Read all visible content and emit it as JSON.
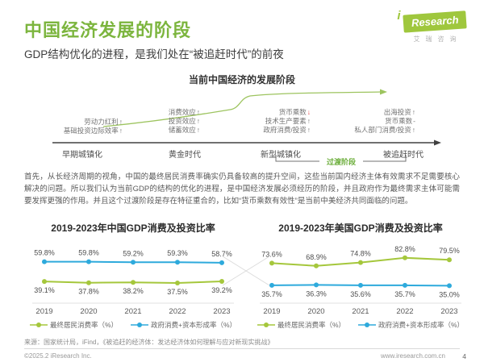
{
  "header": {
    "title": "中国经济发展的阶段",
    "subtitle": "GDP结构优化的进程，是我们处在“被追赶时代”的前夜",
    "logo": {
      "prefix": "i",
      "name": "Research",
      "cn": "艾瑞咨询"
    }
  },
  "diagram": {
    "title": "当前中国经济的发展阶段",
    "transition_label": "过渡阶段",
    "groups": [
      {
        "stage": "早期城镇化",
        "factors": [
          {
            "text": "劳动力红利",
            "arrow": "up"
          },
          {
            "text": "基础投资边际效率",
            "arrow": "up"
          }
        ]
      },
      {
        "stage": "黄金时代",
        "factors": [
          {
            "text": "消费效应",
            "arrow": "up"
          },
          {
            "text": "投资效应",
            "arrow": "up"
          },
          {
            "text": "储蓄效应",
            "arrow": "up"
          }
        ]
      },
      {
        "stage": "新型城镇化",
        "factors": [
          {
            "text": "货币乘数",
            "arrow": "down",
            "arrow_color": "#e4393c"
          },
          {
            "text": "技术生产要素",
            "arrow": "up"
          },
          {
            "text": "政府消费/投资",
            "arrow": "up"
          }
        ]
      },
      {
        "stage": "被追赶时代",
        "factors": [
          {
            "text": "出海投资",
            "arrow": "up"
          },
          {
            "text": "货币乘数",
            "arrow": "dash"
          },
          {
            "text": "私人部门消费/投资",
            "arrow": "up"
          }
        ]
      }
    ]
  },
  "body_text": "首先，从长经济周期的视角，中国的最终居民消费率确实仍具备较高的提升空间，这些当前国内经济主体有效需求不足需要核心解决的问题。所以我们认为当前GDP的结构的优化的进程，是中国经济发展必须经历的阶段，并且政府作为最终需求主体可能需要发挥更强的作用。并且这个过渡阶段是存在特征重合的，比如“货币乘数有效性”是当前中美经济共同面临的问题。",
  "chart_data": [
    {
      "type": "line",
      "title": "2019-2023年中国GDP消费及投资比率",
      "categories": [
        "2019",
        "2020",
        "2021",
        "2022",
        "2023"
      ],
      "series": [
        {
          "name": "最终居民消费率（%）",
          "color": "#a5c73c",
          "values": [
            39.1,
            37.8,
            38.2,
            37.5,
            39.2
          ],
          "label_position": "below"
        },
        {
          "name": "政府消费+资本形成率（%）",
          "color": "#2eaadc",
          "values": [
            59.8,
            59.8,
            59.2,
            59.3,
            58.7
          ],
          "label_position": "above"
        }
      ],
      "ylim": [
        35,
        62
      ],
      "grid": false,
      "legend_position": "bottom"
    },
    {
      "type": "line",
      "title": "2019-2023年美国GDP消费及投资比率",
      "categories": [
        "2019",
        "2020",
        "2021",
        "2022",
        "2023"
      ],
      "series": [
        {
          "name": "最终居民消费率（%）",
          "color": "#a5c73c",
          "values": [
            73.6,
            68.9,
            74.8,
            82.8,
            79.5
          ],
          "label_position": "above"
        },
        {
          "name": "政府消费+资本形成率（%）",
          "color": "#2eaadc",
          "values": [
            35.7,
            36.3,
            35.6,
            35.7,
            35.0
          ],
          "label_position": "below"
        }
      ],
      "ylim": [
        30,
        88
      ],
      "grid": false,
      "legend_position": "bottom"
    }
  ],
  "footer": {
    "source": "来源：国家统计局，iFind，《被追赶的经济体：发达经济体如何理解与应对新现实挑战》",
    "copyright": "©2025.2 iResearch Inc.",
    "website": "www.iresearch.com.cn",
    "page": "4"
  }
}
